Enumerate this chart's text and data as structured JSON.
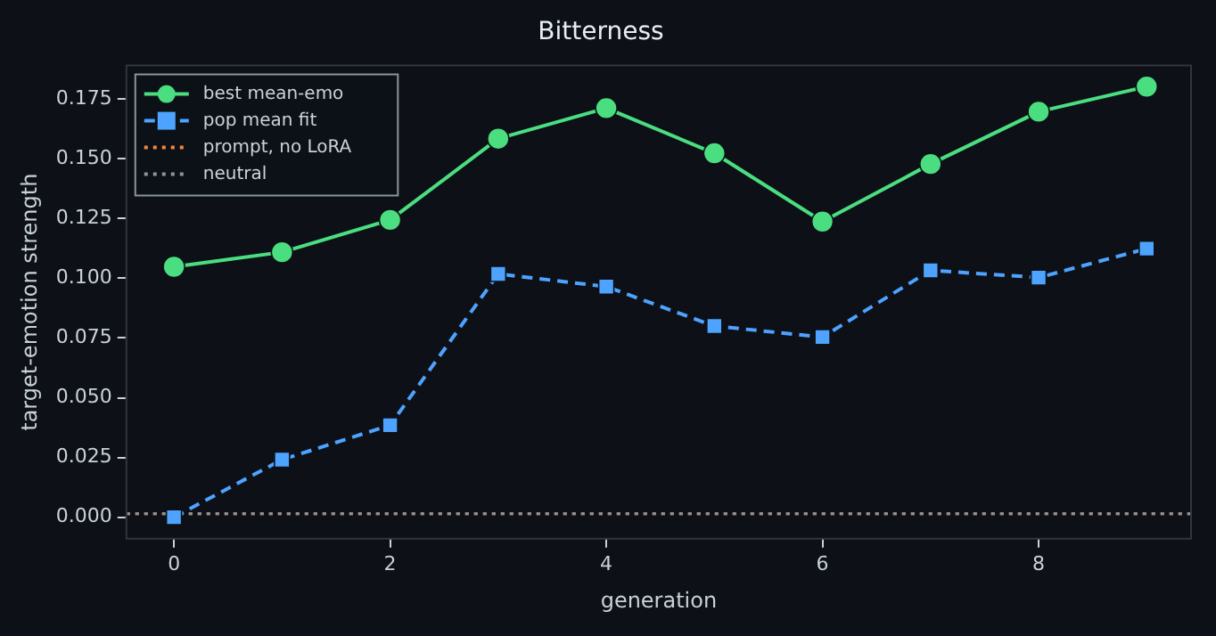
{
  "chart_data": {
    "type": "line",
    "title": "Bitterness",
    "xlabel": "generation",
    "ylabel": "target-emotion strength",
    "x": [
      0,
      1,
      2,
      3,
      4,
      5,
      6,
      7,
      8,
      9
    ],
    "series": [
      {
        "name": "best mean-emo",
        "color": "#4ade80",
        "values": [
          0.1048,
          0.1109,
          0.1244,
          0.1584,
          0.1712,
          0.1523,
          0.1237,
          0.1478,
          0.1697,
          0.1802
        ],
        "marker": "circle",
        "line_style": "solid"
      },
      {
        "name": "pop mean fit",
        "color": "#4da3ff",
        "values": [
          0,
          0.0241,
          0.0385,
          0.1018,
          0.0965,
          0.08,
          0.0754,
          0.1033,
          0.1003,
          0.1124
        ],
        "marker": "square",
        "line_style": "dashed"
      }
    ],
    "ref_lines": [
      {
        "axis": "y",
        "value": 0.0015,
        "label": "prompt, no LoRA",
        "color": "#f0883e",
        "line_style": "dotted"
      },
      {
        "axis": "y",
        "value": 0.0015,
        "label": "neutral",
        "color": "#8b949e",
        "line_style": "dotted"
      }
    ],
    "xlim": [
      -0.44,
      9.41
    ],
    "xticks": [
      0,
      2,
      4,
      6,
      8
    ],
    "ylim": [
      -0.009,
      0.189
    ],
    "yticks": [
      {
        "value": 0,
        "label": "0.000"
      },
      {
        "value": 0.025,
        "label": "0.025"
      },
      {
        "value": 0.05,
        "label": "0.050"
      },
      {
        "value": 0.075,
        "label": "0.075"
      },
      {
        "value": 0.1,
        "label": "0.100"
      },
      {
        "value": 0.125,
        "label": "0.125"
      },
      {
        "value": 0.15,
        "label": "0.150"
      },
      {
        "value": 0.175,
        "label": "0.175"
      }
    ],
    "grid": false,
    "legend": "top left"
  }
}
